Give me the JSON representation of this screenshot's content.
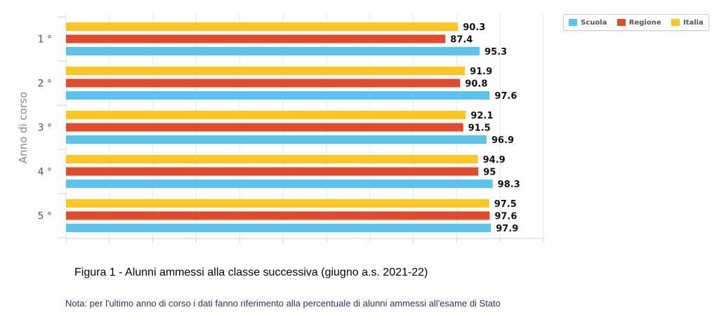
{
  "chart_data": {
    "type": "bar",
    "orientation": "horizontal",
    "ylabel": "Anno di corso",
    "categories": [
      "1 °",
      "2 °",
      "3 °",
      "4 °",
      "5 °"
    ],
    "series": [
      {
        "name": "Italia",
        "color": "#ffc620",
        "values": [
          90.3,
          91.9,
          92.1,
          94.9,
          97.5
        ],
        "labels": [
          "90.3",
          "91.9",
          "92.1",
          "94.9",
          "97.5"
        ]
      },
      {
        "name": "Regione",
        "color": "#e24a2b",
        "values": [
          87.4,
          90.8,
          91.5,
          95,
          97.6
        ],
        "labels": [
          "87.4",
          "90.8",
          "91.5",
          "95",
          "97.6"
        ]
      },
      {
        "name": "Scuola",
        "color": "#5bc4ee",
        "values": [
          95.3,
          97.6,
          96.9,
          98.3,
          97.9
        ],
        "labels": [
          "95.3",
          "97.6",
          "96.9",
          "98.3",
          "97.9"
        ]
      }
    ],
    "xlim": [
      0,
      110
    ],
    "grid": true,
    "legend_position": "top-right",
    "legend": [
      {
        "name": "Scuola",
        "color": "#5bc4ee"
      },
      {
        "name": "Regione",
        "color": "#e24a2b"
      },
      {
        "name": "Italia",
        "color": "#ffc620"
      }
    ]
  },
  "caption": "Figura 1 - Alunni ammessi alla classe successiva (giugno a.s. 2021-22)",
  "note": "Nota: per l'ultimo anno di corso i dati fanno riferimento alla percentuale di alunni ammessi all'esame di Stato"
}
